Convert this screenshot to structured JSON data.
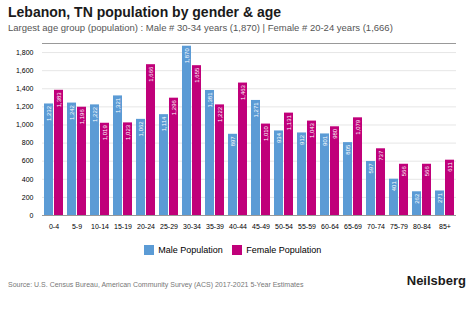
{
  "chart_data": {
    "type": "bar",
    "title": "Lebanon, TN population by gender & age",
    "subtitle": "Largest age group (population) : Male # 30-34 years (1,870) | Female # 20-24 years (1,666)",
    "categories": [
      "0-4",
      "5-9",
      "10-14",
      "15-19",
      "20-24",
      "25-29",
      "30-34",
      "35-39",
      "40-44",
      "45-49",
      "50-54",
      "55-59",
      "60-64",
      "65-69",
      "70-74",
      "75-79",
      "80-84",
      "85+"
    ],
    "series": [
      {
        "name": "Male Population",
        "color": "#5b9bd5",
        "values": [
          1232,
          1242,
          1222,
          1321,
          1062,
          1114,
          1870,
          1381,
          897,
          1271,
          934,
          912,
          901,
          805,
          597,
          401,
          262,
          271
        ],
        "value_labels": [
          "1,232",
          "1,242",
          "1,222",
          "1,321",
          "1,062",
          "1,114",
          "1,870",
          "1,381",
          "897",
          "1,271",
          "934",
          "912",
          "901",
          "805",
          "597",
          "401",
          "262",
          "271"
        ]
      },
      {
        "name": "Female Population",
        "color": "#c0007a",
        "values": [
          1383,
          1196,
          1019,
          1023,
          1666,
          1296,
          1655,
          1222,
          1463,
          1010,
          1131,
          1043,
          980,
          1079,
          737,
          566,
          566,
          611
        ],
        "value_labels": [
          "1,383",
          "1,196",
          "1,019",
          "1,023",
          "1,666",
          "1,296",
          "1,655",
          "1,222",
          "1,463",
          "1,010",
          "1,131",
          "1,043",
          "980",
          "1,079",
          "737",
          "566",
          "566",
          "611"
        ]
      }
    ],
    "ylim": [
      0,
      1900
    ],
    "yticks": [
      0,
      200,
      400,
      600,
      800,
      1000,
      1200,
      1400,
      1600,
      1800
    ],
    "grid": true,
    "legend": "bottom",
    "data_labels": true,
    "annotations": [
      "Source: U.S. Census Bureau, American Community Survey (ACS) 2017-2021 5-Year Estimates",
      "Neilsberg"
    ]
  }
}
